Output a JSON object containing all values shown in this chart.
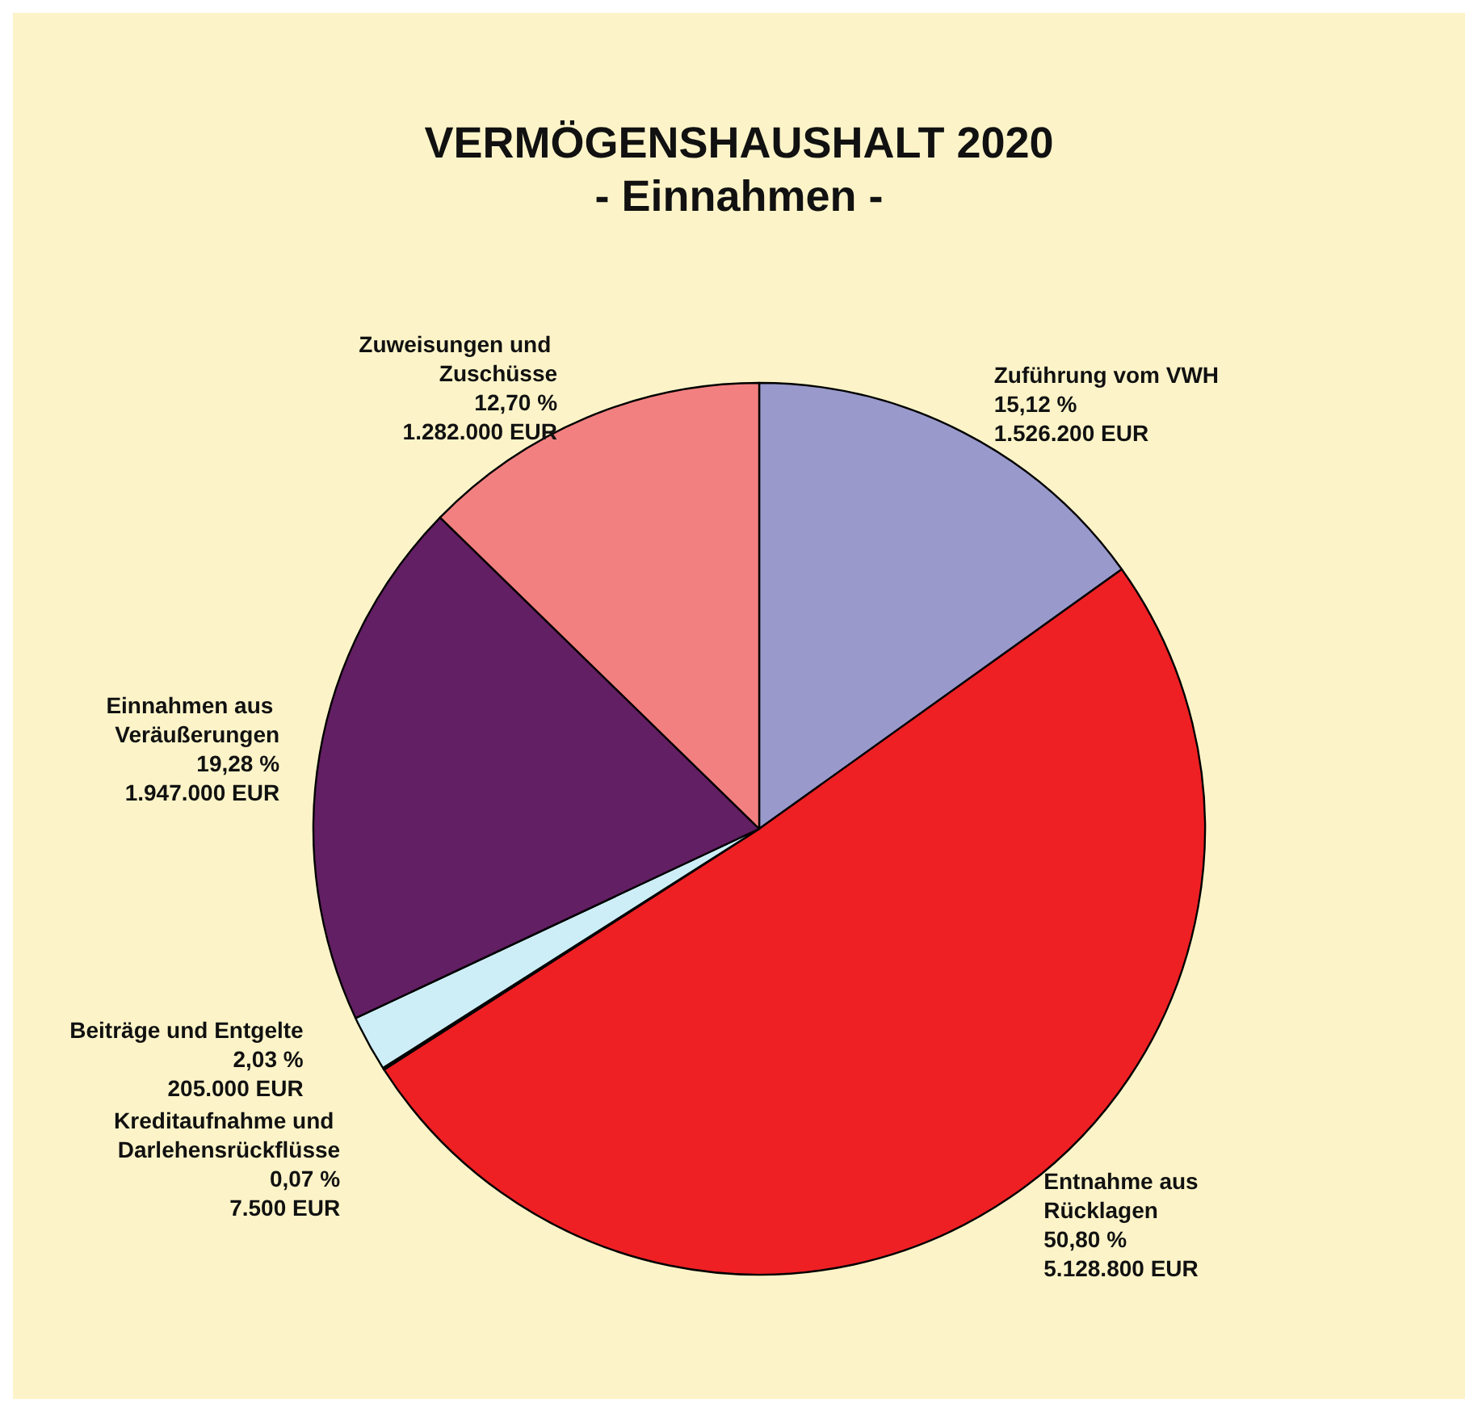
{
  "chart_data": {
    "type": "pie",
    "title": "VERMÖGENSHAUSHALT 2020",
    "subtitle": "- Einnahmen -",
    "categories": [
      "Zuführung vom VWH",
      "Entnahme aus Rücklagen",
      "Kreditaufnahme und Darlehensrückflüsse",
      "Beiträge und Entgelte",
      "Einnahmen aus Veräußerungen",
      "Zuweisungen und Zuschüsse"
    ],
    "values": [
      1526200,
      5128800,
      7500,
      205000,
      1947000,
      1282000
    ],
    "colors": [
      "#9999cc",
      "#ee2024",
      "#1a1a1a",
      "#cdeef7",
      "#631f63",
      "#f38080"
    ],
    "value_labels": [
      "15,12 %\n1.526.200 EUR",
      "50,80 %\n5.128.800 EUR",
      "0,07 %\n7.500 EUR",
      "2,03 %\n205.000 EUR",
      "19,28 %\n1.947.000 EUR",
      "12,70 %\n1.282.000 EUR"
    ],
    "legend": false
  }
}
